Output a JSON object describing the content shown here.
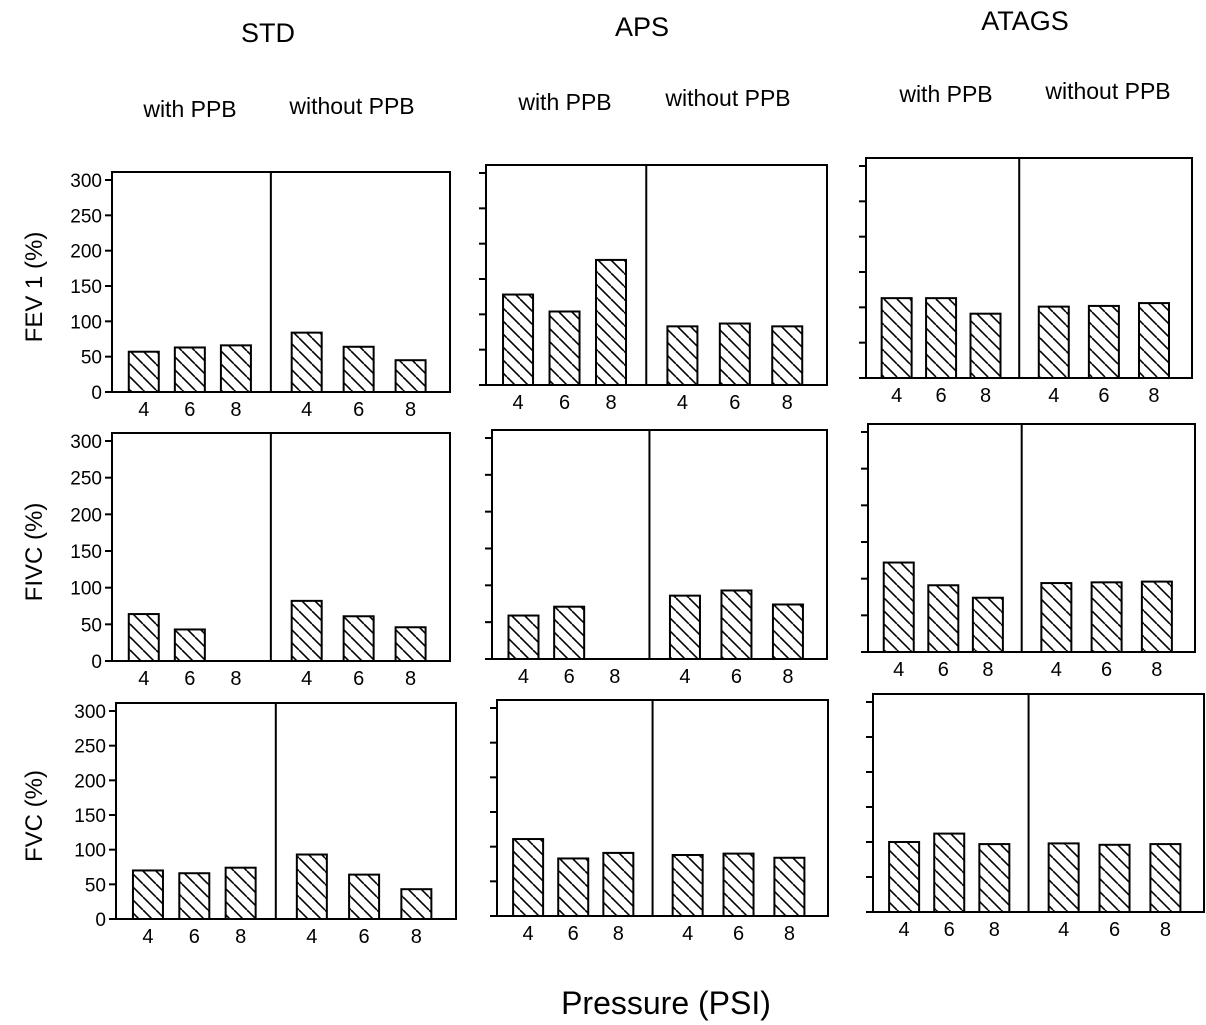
{
  "columns": [
    "STD",
    "APS",
    "ATAGS"
  ],
  "subheads": [
    "with  PPB",
    "without  PPB"
  ],
  "row_labels": [
    "FEV 1  (%)",
    "FIVC  (%)",
    "FVC  (%)"
  ],
  "xlabel": "Pressure    (PSI)",
  "chart_data": {
    "type": "bar",
    "categories": [
      "4",
      "6",
      "8"
    ],
    "ylim": [
      0,
      300
    ],
    "yticks": [
      "0",
      "50",
      "100",
      "150",
      "200",
      "250",
      "300"
    ],
    "ytick_values": [
      0,
      50,
      100,
      150,
      200,
      250,
      300
    ],
    "grid": false,
    "bar_pattern": "diagonal-hatch",
    "bar_color": "#000000",
    "panels": [
      {
        "row": "FEV 1 (%)",
        "column": "STD",
        "with_ppb": [
          57,
          63,
          66
        ],
        "without_ppb": [
          84,
          64,
          45
        ]
      },
      {
        "row": "FEV 1 (%)",
        "column": "APS",
        "with_ppb": [
          128,
          104,
          177
        ],
        "without_ppb": [
          83,
          87,
          83
        ]
      },
      {
        "row": "FEV 1 (%)",
        "column": "ATAGS",
        "with_ppb": [
          113,
          113,
          91
        ],
        "without_ppb": [
          101,
          102,
          106
        ]
      },
      {
        "row": "FIVC (%)",
        "column": "STD",
        "with_ppb": [
          64,
          43,
          null
        ],
        "without_ppb": [
          82,
          61,
          46
        ]
      },
      {
        "row": "FIVC (%)",
        "column": "APS",
        "with_ppb": [
          59,
          71,
          null
        ],
        "without_ppb": [
          86,
          93,
          74
        ]
      },
      {
        "row": "FIVC (%)",
        "column": "ATAGS",
        "with_ppb": [
          122,
          91,
          74
        ],
        "without_ppb": [
          94,
          95,
          96
        ]
      },
      {
        "row": "FVC (%)",
        "column": "STD",
        "with_ppb": [
          70,
          66,
          74
        ],
        "without_ppb": [
          93,
          64,
          43
        ]
      },
      {
        "row": "FVC (%)",
        "column": "APS",
        "with_ppb": [
          111,
          83,
          91
        ],
        "without_ppb": [
          88,
          90,
          84
        ]
      },
      {
        "row": "FVC (%)",
        "column": "ATAGS",
        "with_ppb": [
          100,
          112,
          97
        ],
        "without_ppb": [
          98,
          96,
          97
        ]
      }
    ]
  }
}
